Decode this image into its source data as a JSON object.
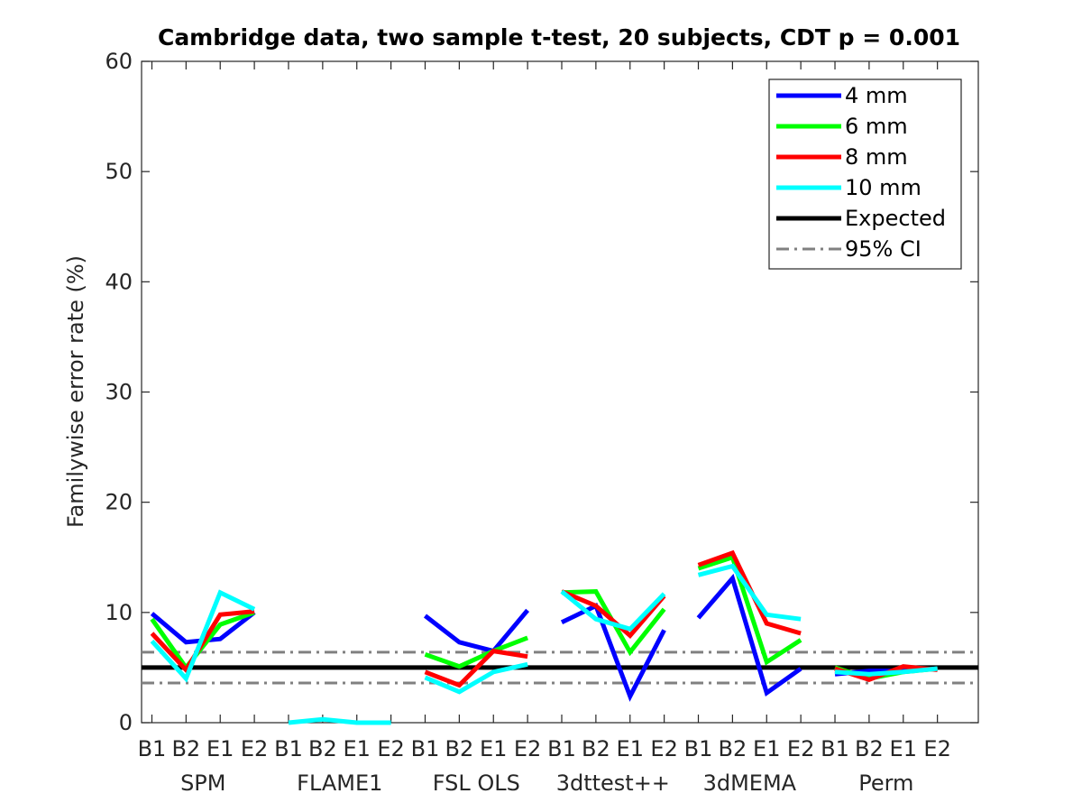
{
  "chart_data": {
    "type": "line",
    "title": "Cambridge data, two sample t-test, 20 subjects, CDT p = 0.001",
    "ylabel": "Familywise error rate (%)",
    "xlabel": "",
    "ylim": [
      0,
      60
    ],
    "yticks": [
      0,
      10,
      20,
      30,
      40,
      50,
      60
    ],
    "x_tick_labels": [
      "B1",
      "B2",
      "E1",
      "E2",
      "B1",
      "B2",
      "E1",
      "E2",
      "B1",
      "B2",
      "E1",
      "E2",
      "B1",
      "B2",
      "E1",
      "E2",
      "B1",
      "B2",
      "E1",
      "E2",
      "B1",
      "B2",
      "E1",
      "E2"
    ],
    "groups": [
      "SPM",
      "FLAME1",
      "FSL OLS",
      "3dttest++",
      "3dMEMA",
      "Perm"
    ],
    "grid": false,
    "legend_position": "top-right",
    "series": [
      {
        "name": "4 mm",
        "color": "#0000ff",
        "values": [
          9.9,
          7.3,
          7.6,
          10.0,
          null,
          null,
          null,
          null,
          9.7,
          7.3,
          6.5,
          10.2,
          9.1,
          10.6,
          2.4,
          8.4,
          9.5,
          13.1,
          2.7,
          4.9,
          4.4,
          4.7,
          4.7,
          4.9
        ]
      },
      {
        "name": "6 mm",
        "color": "#00ff00",
        "values": [
          9.4,
          5.0,
          8.9,
          10.0,
          null,
          null,
          null,
          null,
          6.2,
          5.1,
          6.5,
          7.7,
          11.8,
          11.9,
          6.4,
          10.3,
          14.0,
          15.0,
          5.5,
          7.5,
          5.0,
          4.0,
          4.6,
          4.9
        ]
      },
      {
        "name": "8 mm",
        "color": "#ff0000",
        "values": [
          8.1,
          4.8,
          9.8,
          10.1,
          null,
          null,
          null,
          null,
          4.6,
          3.4,
          6.5,
          6.0,
          11.9,
          10.6,
          7.9,
          11.5,
          14.3,
          15.4,
          9.0,
          8.1,
          4.9,
          3.9,
          5.1,
          4.8
        ]
      },
      {
        "name": "10 mm",
        "color": "#00ffff",
        "values": [
          7.4,
          4.0,
          11.8,
          10.3,
          0.0,
          0.3,
          0.0,
          0.0,
          4.1,
          2.8,
          4.6,
          5.3,
          11.9,
          9.4,
          8.5,
          11.7,
          13.4,
          14.2,
          9.8,
          9.4,
          4.6,
          4.4,
          4.6,
          4.9
        ]
      }
    ],
    "expected": {
      "name": "Expected",
      "value": 5.0,
      "color": "#000000"
    },
    "ci": {
      "name": "95% CI",
      "lower": 3.6,
      "upper": 6.4,
      "color": "#808080"
    }
  }
}
